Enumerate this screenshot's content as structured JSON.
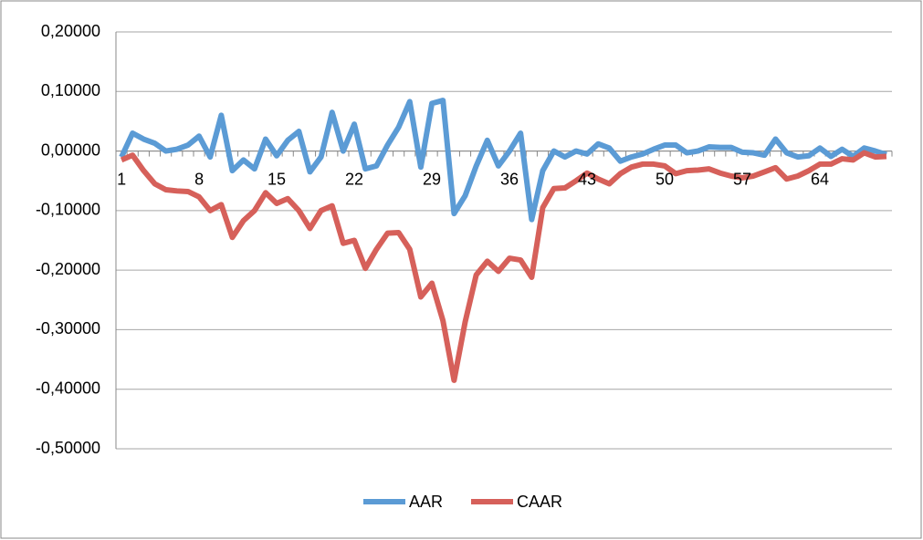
{
  "chart_data": {
    "type": "line",
    "categories": [
      "1",
      null,
      null,
      null,
      null,
      null,
      null,
      "8",
      null,
      null,
      null,
      null,
      null,
      null,
      "15",
      null,
      null,
      null,
      null,
      null,
      null,
      "22",
      null,
      null,
      null,
      null,
      null,
      null,
      "29",
      null,
      null,
      null,
      null,
      null,
      null,
      "36",
      null,
      null,
      null,
      null,
      null,
      null,
      "43",
      null,
      null,
      null,
      null,
      null,
      null,
      "50",
      null,
      null,
      null,
      null,
      null,
      null,
      "57",
      null,
      null,
      null,
      null,
      null,
      null,
      "64",
      null,
      null,
      null,
      null,
      null,
      null
    ],
    "series": [
      {
        "name": "AAR",
        "color": "#5b9bd5",
        "values": [
          -0.01,
          0.03,
          0.02,
          0.013,
          0.0,
          0.003,
          0.01,
          0.025,
          -0.01,
          0.06,
          -0.033,
          -0.015,
          -0.03,
          0.02,
          -0.008,
          0.018,
          0.033,
          -0.035,
          -0.01,
          0.065,
          0.0,
          0.045,
          -0.03,
          -0.025,
          0.01,
          0.04,
          0.083,
          -0.027,
          0.08,
          0.085,
          -0.105,
          -0.075,
          -0.025,
          0.018,
          -0.025,
          0.0,
          0.03,
          -0.115,
          -0.033,
          0.0,
          -0.01,
          0.0,
          -0.005,
          0.012,
          0.005,
          -0.017,
          -0.01,
          -0.005,
          0.003,
          0.01,
          0.01,
          -0.003,
          0.0,
          0.007,
          0.006,
          0.006,
          -0.002,
          -0.003,
          -0.007,
          0.02,
          -0.003,
          -0.01,
          -0.008,
          0.005,
          -0.009,
          0.003,
          -0.009,
          0.005,
          0.0,
          -0.006
        ]
      },
      {
        "name": "CAAR",
        "color": "#d6605a",
        "values": [
          -0.015,
          -0.007,
          -0.033,
          -0.055,
          -0.065,
          -0.067,
          -0.068,
          -0.077,
          -0.1,
          -0.09,
          -0.145,
          -0.117,
          -0.1,
          -0.07,
          -0.088,
          -0.08,
          -0.1,
          -0.13,
          -0.1,
          -0.092,
          -0.155,
          -0.15,
          -0.197,
          -0.165,
          -0.138,
          -0.137,
          -0.165,
          -0.245,
          -0.222,
          -0.285,
          -0.385,
          -0.287,
          -0.208,
          -0.185,
          -0.202,
          -0.18,
          -0.183,
          -0.212,
          -0.095,
          -0.063,
          -0.062,
          -0.05,
          -0.037,
          -0.047,
          -0.055,
          -0.038,
          -0.027,
          -0.022,
          -0.022,
          -0.025,
          -0.038,
          -0.033,
          -0.032,
          -0.03,
          -0.037,
          -0.042,
          -0.045,
          -0.042,
          -0.035,
          -0.028,
          -0.047,
          -0.042,
          -0.033,
          -0.022,
          -0.022,
          -0.013,
          -0.015,
          -0.003,
          -0.01,
          -0.009
        ]
      }
    ],
    "ylim": [
      -0.5,
      0.2
    ],
    "yticks": [
      {
        "value": -0.5,
        "label": "-0,50000"
      },
      {
        "value": -0.4,
        "label": "-0,40000"
      },
      {
        "value": -0.3,
        "label": "-0,30000"
      },
      {
        "value": -0.2,
        "label": "-0,20000"
      },
      {
        "value": -0.1,
        "label": "-0,10000"
      },
      {
        "value": 0,
        "label": "0,00000"
      },
      {
        "value": 0.1,
        "label": "0,10000"
      },
      {
        "value": 0.2,
        "label": "0,20000"
      }
    ],
    "grid": true,
    "legend": "bottom"
  }
}
